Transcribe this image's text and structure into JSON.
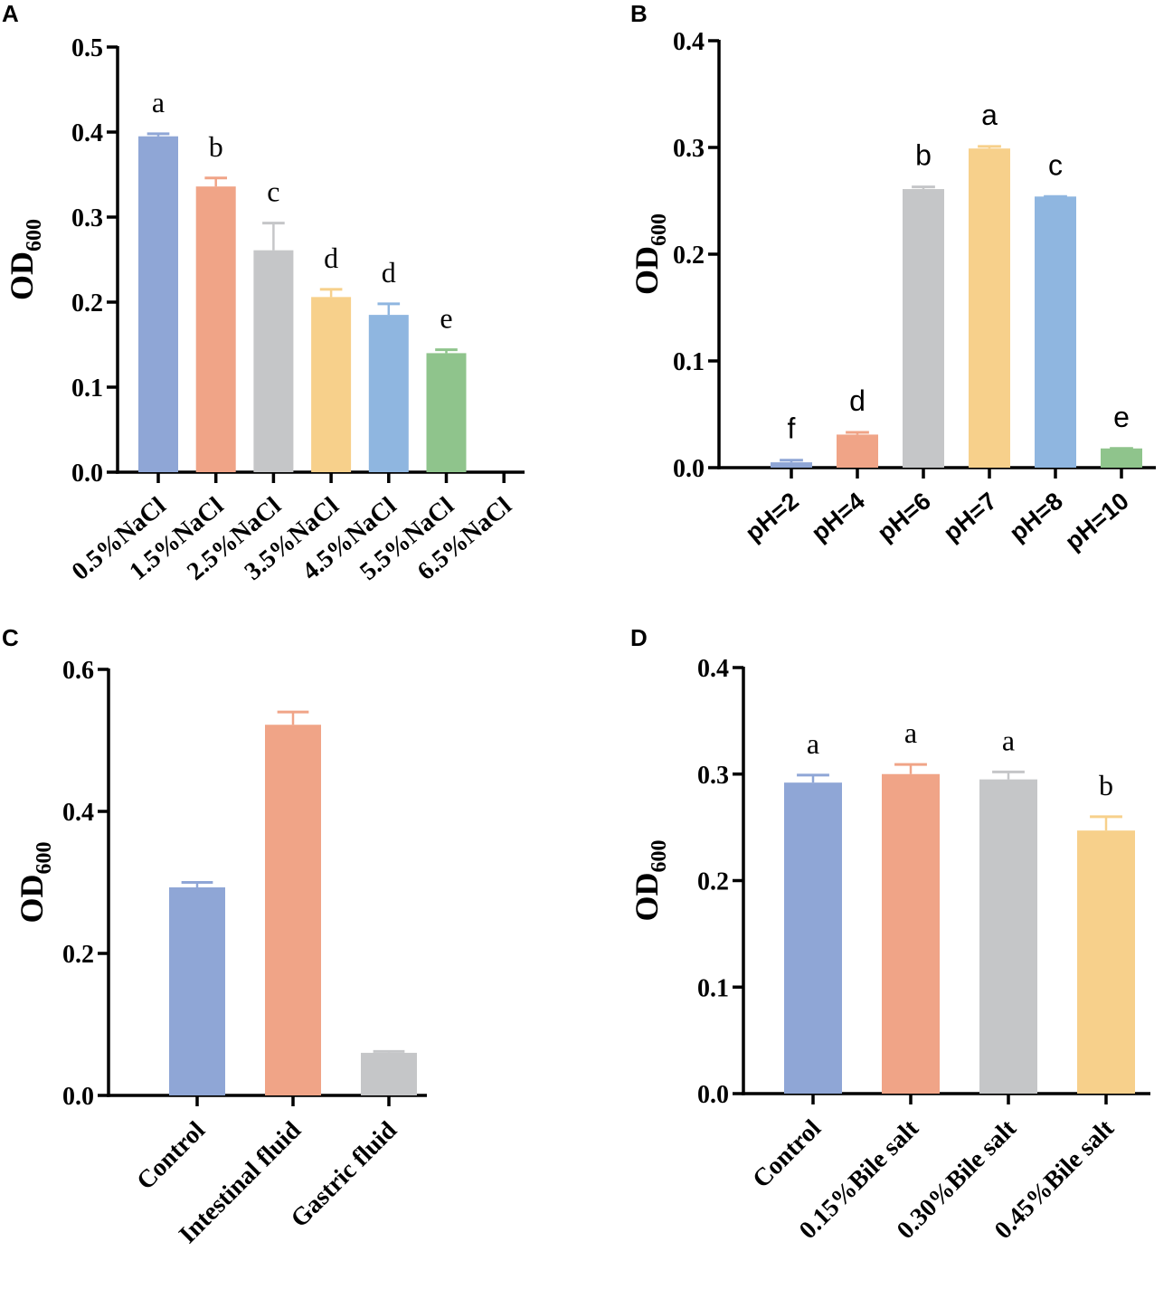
{
  "chart_data": [
    {
      "panel": "A",
      "type": "bar",
      "ylabel": "OD",
      "ylabel_sub": "600",
      "ylim": [
        0,
        0.5
      ],
      "yticks": [
        "0.0",
        "0.1",
        "0.2",
        "0.3",
        "0.4",
        "0.5"
      ],
      "categories": [
        "0.5%NaCl",
        "1.5%NaCl",
        "2.5%NaCl",
        "3.5%NaCl",
        "4.5%NaCl",
        "5.5%NaCl",
        "6.5%NaCl"
      ],
      "values": [
        0.395,
        0.336,
        0.261,
        0.206,
        0.185,
        0.14,
        0
      ],
      "errors": [
        0.003,
        0.01,
        0.032,
        0.009,
        0.013,
        0.004,
        0
      ],
      "letters": [
        "a",
        "b",
        "c",
        "d",
        "d",
        "e",
        ""
      ],
      "colors": [
        "#8fa6d6",
        "#f0a487",
        "#c5c6c8",
        "#f7d08b",
        "#8fb6e0",
        "#8fc48c",
        "#ffffff"
      ],
      "grid": false
    },
    {
      "panel": "B",
      "type": "bar",
      "ylabel": "OD",
      "ylabel_sub": "600",
      "ylim": [
        0,
        0.4
      ],
      "yticks": [
        "0.0",
        "0.1",
        "0.2",
        "0.3",
        "0.4"
      ],
      "categories": [
        "pH=2",
        "pH=4",
        "pH=6",
        "pH=7",
        "pH=8",
        "pH=10"
      ],
      "values": [
        0.005,
        0.031,
        0.261,
        0.299,
        0.254,
        0.018
      ],
      "errors": [
        0.002,
        0.002,
        0.002,
        0.002,
        0,
        0
      ],
      "letters": [
        "f",
        "d",
        "b",
        "a",
        "c",
        "e"
      ],
      "colors": [
        "#8fa6d6",
        "#f0a487",
        "#c5c6c8",
        "#f7d08b",
        "#8fb6e0",
        "#8fc48c"
      ],
      "grid": false
    },
    {
      "panel": "C",
      "type": "bar",
      "ylabel": "OD",
      "ylabel_sub": "600",
      "ylim": [
        0,
        0.6
      ],
      "yticks": [
        "0.0",
        "0.2",
        "0.4",
        "0.6"
      ],
      "categories": [
        "Control",
        "Intestinal fluid",
        "Gastric fluid"
      ],
      "values": [
        0.293,
        0.522,
        0.06
      ],
      "errors": [
        0.007,
        0.018,
        0.002
      ],
      "letters": [
        "",
        "",
        ""
      ],
      "colors": [
        "#8fa6d6",
        "#f0a487",
        "#c5c6c8"
      ],
      "grid": false
    },
    {
      "panel": "D",
      "type": "bar",
      "ylabel": "OD",
      "ylabel_sub": "600",
      "ylim": [
        0,
        0.4
      ],
      "yticks": [
        "0.0",
        "0.1",
        "0.2",
        "0.3",
        "0.4"
      ],
      "categories": [
        "Control",
        "0.15%Bile salt",
        "0.30%Bile salt",
        "0.45%Bile salt"
      ],
      "values": [
        0.292,
        0.3,
        0.295,
        0.247
      ],
      "errors": [
        0.007,
        0.009,
        0.007,
        0.013
      ],
      "letters": [
        "a",
        "a",
        "a",
        "b"
      ],
      "colors": [
        "#8fa6d6",
        "#f0a487",
        "#c5c6c8",
        "#f7d08b"
      ],
      "grid": false
    }
  ]
}
